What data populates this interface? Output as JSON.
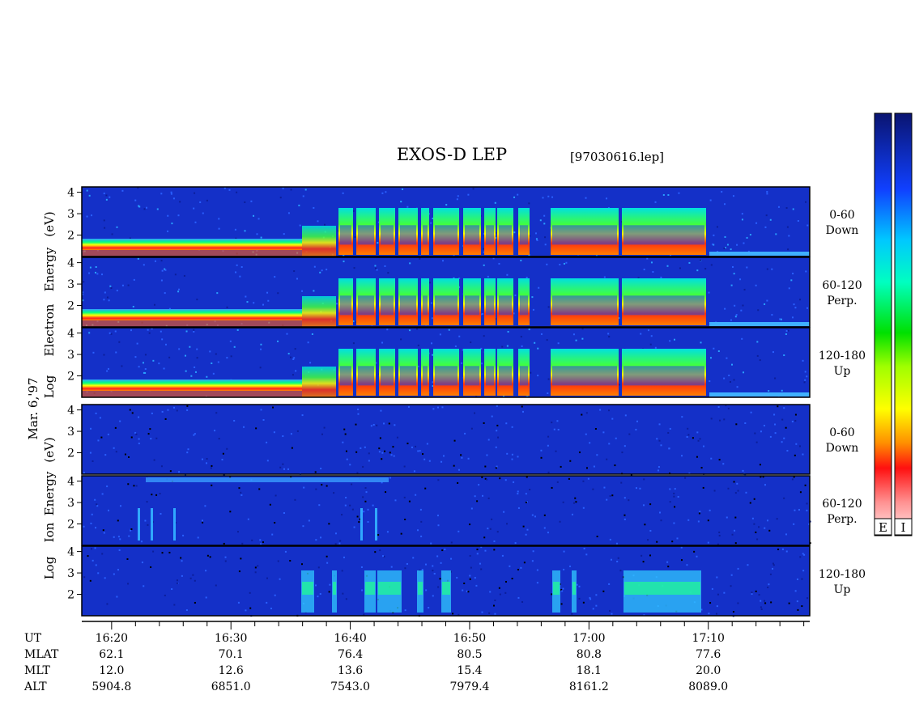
{
  "title": "EXOS-D LEP",
  "file_tag": "[97030616.lep]",
  "date_label": "Mar. 6,'97",
  "ylabels": {
    "electron": [
      "Log",
      "Electron",
      "Energy",
      "(eV)"
    ],
    "ion": [
      "Log",
      "Ion",
      "Energy",
      "(eV)"
    ]
  },
  "colorbar_labels": [
    "E",
    "I"
  ],
  "chart_data": {
    "type": "heatmap",
    "title": "EXOS-D LEP",
    "y_ticks": [
      "4",
      "3",
      "2"
    ],
    "panels": [
      {
        "species": "Electron",
        "pitch": "0-60",
        "dir": "Down"
      },
      {
        "species": "Electron",
        "pitch": "60-120",
        "dir": "Perp."
      },
      {
        "species": "Electron",
        "pitch": "120-180",
        "dir": "Up"
      },
      {
        "species": "Ion",
        "pitch": "0-60",
        "dir": "Down"
      },
      {
        "species": "Ion",
        "pitch": "60-120",
        "dir": "Perp."
      },
      {
        "species": "Ion",
        "pitch": "120-180",
        "dir": "Up"
      }
    ],
    "x_ticks": [
      "16:20",
      "16:30",
      "16:40",
      "16:50",
      "17:00",
      "17:10"
    ],
    "ephemeris": [
      {
        "name": "UT",
        "values": [
          "16:20",
          "16:30",
          "16:40",
          "16:50",
          "17:00",
          "17:10"
        ]
      },
      {
        "name": "MLAT",
        "values": [
          "62.1",
          "70.1",
          "76.4",
          "80.5",
          "80.8",
          "77.6"
        ]
      },
      {
        "name": "MLT",
        "values": [
          "12.0",
          "12.6",
          "13.6",
          "15.4",
          "18.1",
          "20.0"
        ]
      },
      {
        "name": "ALT",
        "values": [
          "5904.8",
          "6851.0",
          "7543.0",
          "7979.4",
          "8161.2",
          "8089.0"
        ]
      }
    ],
    "colors": {
      "background": "#1430c8",
      "low": "#0a1a8c",
      "mid": "#00e0d0",
      "high": "#ffe000",
      "peak": "#ff2020"
    }
  }
}
